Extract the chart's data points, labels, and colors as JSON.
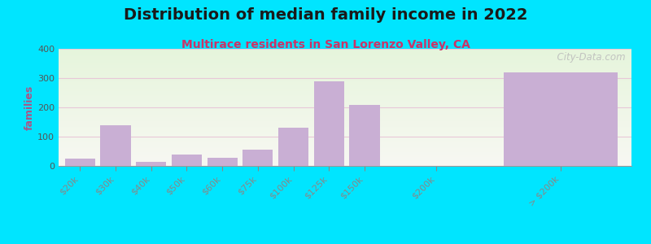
{
  "title": "Distribution of median family income in 2022",
  "subtitle": "Multirace residents in San Lorenzo Valley, CA",
  "ylabel": "families",
  "categories": [
    "$20k",
    "$30k",
    "$40k",
    "$50k",
    "$60k",
    "$75k",
    "$100k",
    "$125k",
    "$150k",
    "$200k",
    "> $200k"
  ],
  "values": [
    25,
    140,
    15,
    38,
    28,
    55,
    130,
    290,
    207,
    0,
    320
  ],
  "bar_color": "#c9afd4",
  "background_outer": "#00e5ff",
  "grid_color": "#e8c8d8",
  "title_fontsize": 14,
  "subtitle_fontsize": 10,
  "ylabel_fontsize": 9,
  "tick_fontsize": 8,
  "ylim": [
    0,
    400
  ],
  "yticks": [
    0,
    100,
    200,
    300,
    400
  ],
  "watermark": "  City-Data.com"
}
